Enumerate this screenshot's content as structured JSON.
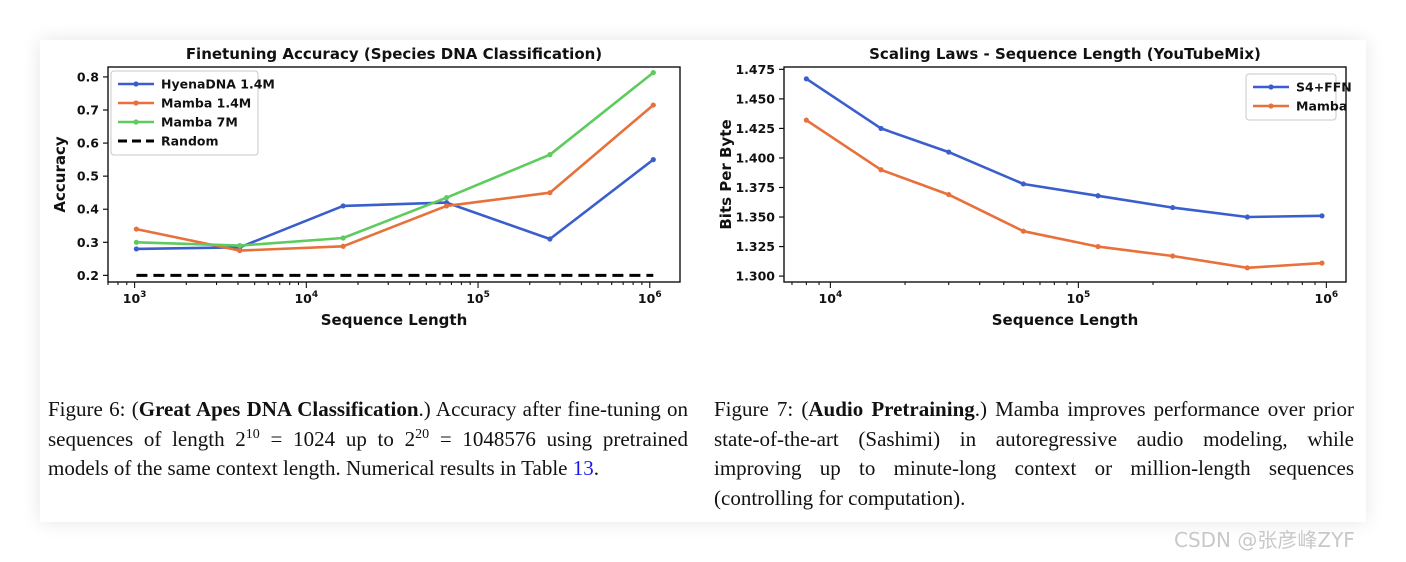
{
  "figure6": {
    "chart_data": {
      "type": "line",
      "title": "Finetuning Accuracy (Species DNA Classification)",
      "xlabel": "Sequence Length",
      "ylabel": "Accuracy",
      "xscale": "log",
      "x": [
        1024,
        4096,
        16384,
        65536,
        262144,
        1048576
      ],
      "xlim": [
        700,
        1500000
      ],
      "ylim": [
        0.18,
        0.83
      ],
      "yticks": [
        0.2,
        0.3,
        0.4,
        0.5,
        0.6,
        0.7,
        0.8
      ],
      "ytick_labels": [
        "0.2",
        "0.3",
        "0.4",
        "0.5",
        "0.6",
        "0.7",
        "0.8"
      ],
      "xticks": [
        1000,
        10000,
        100000,
        1000000
      ],
      "xtick_base": "10",
      "xtick_exponents": [
        "3",
        "4",
        "5",
        "6"
      ],
      "legend_position": "top-left",
      "grid": false,
      "series": [
        {
          "name": "HyenaDNA 1.4M",
          "color": "#3a5fcd",
          "style": "solid",
          "markers": true,
          "values": [
            0.28,
            0.285,
            0.41,
            0.42,
            0.31,
            0.55
          ]
        },
        {
          "name": "Mamba 1.4M",
          "color": "#e8703a",
          "style": "solid",
          "markers": true,
          "values": [
            0.34,
            0.275,
            0.288,
            0.41,
            0.45,
            0.715
          ]
        },
        {
          "name": "Mamba 7M",
          "color": "#5ecb5e",
          "style": "solid",
          "markers": true,
          "values": [
            0.3,
            0.29,
            0.313,
            0.435,
            0.565,
            0.813
          ]
        },
        {
          "name": "Random",
          "color": "#000000",
          "style": "dashed",
          "markers": false,
          "values": [
            0.2,
            0.2,
            0.2,
            0.2,
            0.2,
            0.2
          ]
        }
      ]
    },
    "caption": {
      "prefix": "Figure 6: (",
      "bold": "Great Apes DNA Classification",
      "text1": ".) Accuracy after fine-tuning on sequences of length 2",
      "sup1": "10",
      "text2": " = 1024 up to 2",
      "sup2": "20",
      "text3": " = 1048576 using pretrained models of the same context length. Numerical results in Table ",
      "ref": "13",
      "text4": "."
    }
  },
  "figure7": {
    "chart_data": {
      "type": "line",
      "title": "Scaling Laws - Sequence Length (YouTubeMix)",
      "xlabel": "Sequence Length",
      "ylabel": "Bits Per Byte",
      "xscale": "log",
      "x": [
        8000,
        16000,
        30000,
        60000,
        120000,
        240000,
        480000,
        960000
      ],
      "xlim": [
        6500,
        1200000
      ],
      "ylim": [
        1.295,
        1.477
      ],
      "yticks": [
        1.3,
        1.325,
        1.35,
        1.375,
        1.4,
        1.425,
        1.45,
        1.475
      ],
      "ytick_labels": [
        "1.300",
        "1.325",
        "1.350",
        "1.375",
        "1.400",
        "1.425",
        "1.450",
        "1.475"
      ],
      "xticks": [
        10000,
        100000,
        1000000
      ],
      "xtick_base": "10",
      "xtick_exponents": [
        "4",
        "5",
        "6"
      ],
      "legend_position": "top-right",
      "grid": false,
      "series": [
        {
          "name": "S4+FFN",
          "color": "#3a5fcd",
          "style": "solid",
          "markers": true,
          "values": [
            1.467,
            1.425,
            1.405,
            1.378,
            1.368,
            1.358,
            1.35,
            1.351
          ]
        },
        {
          "name": "Mamba",
          "color": "#e8703a",
          "style": "solid",
          "markers": true,
          "values": [
            1.432,
            1.39,
            1.369,
            1.338,
            1.325,
            1.317,
            1.307,
            1.311
          ]
        }
      ]
    },
    "caption": {
      "prefix": "Figure 7: (",
      "bold": "Audio Pretraining",
      "text1": ".) Mamba improves performance over prior state-of-the-art (Sashimi) in autoregressive audio modeling, while improving up to minute-long context or million-length sequences (controlling for computation)."
    }
  },
  "watermark": "CSDN @张彦峰ZYF"
}
